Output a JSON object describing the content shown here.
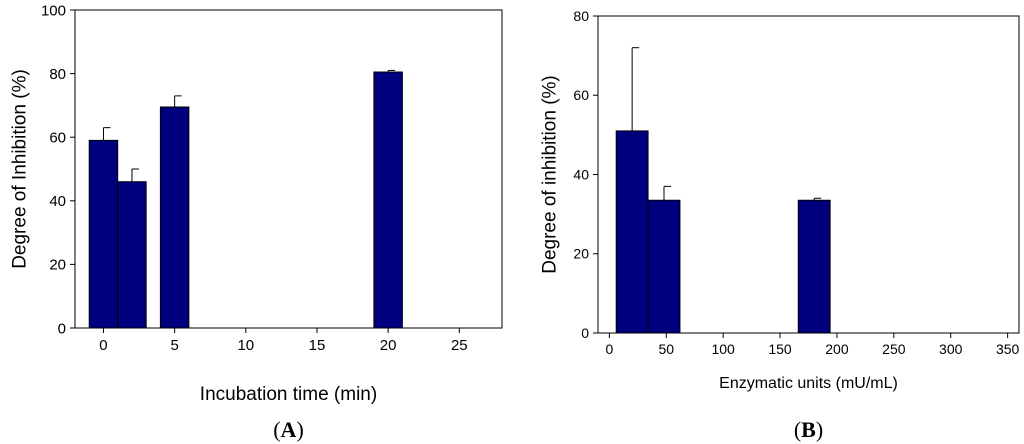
{
  "chart_data": [
    {
      "type": "bar",
      "panel_label": {
        "open": "(",
        "letter": "A",
        "close": ")"
      },
      "xlabel": "Incubation time (min)",
      "ylabel": "Degree of Inhibition (%)",
      "xlim": [
        -2,
        28
      ],
      "ylim": [
        0,
        100
      ],
      "xticks": [
        0,
        5,
        10,
        15,
        20,
        25
      ],
      "yticks": [
        0,
        20,
        40,
        60,
        80,
        100
      ],
      "bar_color": "#00007f",
      "error_bars": "upper",
      "bars": [
        {
          "x": 0,
          "half_width": 1.0,
          "value": 59.0,
          "error": 4.0
        },
        {
          "x": 2,
          "half_width": 1.0,
          "value": 46.0,
          "error": 4.0
        },
        {
          "x": 5,
          "half_width": 1.0,
          "value": 69.5,
          "error": 3.5
        },
        {
          "x": 20,
          "half_width": 1.0,
          "value": 80.5,
          "error": 0.5
        }
      ]
    },
    {
      "type": "bar",
      "panel_label": {
        "open": "(",
        "letter": "B",
        "close": ")"
      },
      "xlabel": "Enzymatic units (mU/mL)",
      "ylabel": "Degree of inhibition (%)",
      "xlim": [
        -10,
        360
      ],
      "ylim": [
        0,
        80
      ],
      "xticks": [
        0,
        50,
        100,
        150,
        200,
        250,
        300,
        350
      ],
      "yticks": [
        0,
        20,
        40,
        60,
        80
      ],
      "bar_color": "#00007f",
      "error_bars": "upper",
      "bars": [
        {
          "x": 20,
          "half_width": 14,
          "value": 51.0,
          "error": 21.0
        },
        {
          "x": 48,
          "half_width": 14,
          "value": 33.5,
          "error": 3.5
        },
        {
          "x": 180,
          "half_width": 14,
          "value": 33.5,
          "error": 0.5
        }
      ]
    }
  ]
}
